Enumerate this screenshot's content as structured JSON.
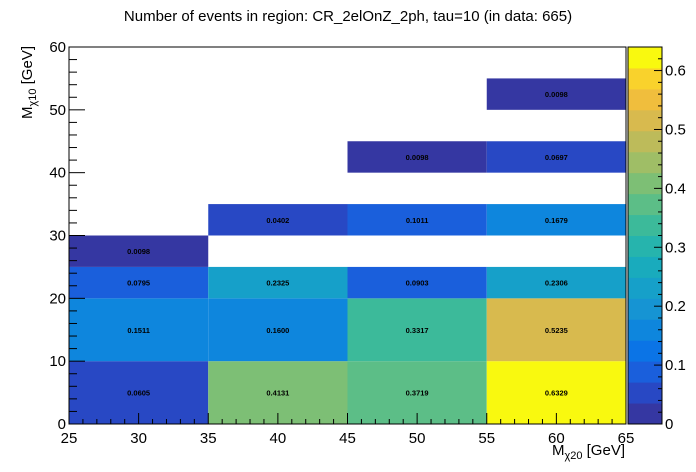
{
  "chart_data": {
    "type": "heatmap",
    "title": "Number of events in region: CR_2elOnZ_2ph, tau=10 (in data: 665)",
    "xlabel": {
      "main": "M",
      "sub": "χ20",
      "unit": " [GeV]"
    },
    "ylabel": {
      "main": "M",
      "sub": "χ10",
      "unit": " [GeV]"
    },
    "xlim": [
      25,
      65
    ],
    "ylim": [
      0,
      60
    ],
    "x_ticks": [
      "25",
      "30",
      "35",
      "40",
      "45",
      "50",
      "55",
      "60",
      "65"
    ],
    "y_ticks": [
      "0",
      "10",
      "20",
      "30",
      "40",
      "50",
      "60"
    ],
    "zlim": [
      0,
      0.64
    ],
    "z_ticks": [
      "0",
      "0.1",
      "0.2",
      "0.3",
      "0.4",
      "0.5",
      "0.6"
    ],
    "cells": [
      {
        "x0": 25,
        "x1": 35,
        "y0": 0,
        "y1": 10,
        "value": 0.0605,
        "label": "0.0605"
      },
      {
        "x0": 35,
        "x1": 45,
        "y0": 0,
        "y1": 10,
        "value": 0.4131,
        "label": "0.4131"
      },
      {
        "x0": 45,
        "x1": 55,
        "y0": 0,
        "y1": 10,
        "value": 0.3719,
        "label": "0.3719"
      },
      {
        "x0": 55,
        "x1": 65,
        "y0": 0,
        "y1": 10,
        "value": 0.6329,
        "label": "0.6329"
      },
      {
        "x0": 25,
        "x1": 35,
        "y0": 10,
        "y1": 20,
        "value": 0.1511,
        "label": "0.1511"
      },
      {
        "x0": 35,
        "x1": 45,
        "y0": 10,
        "y1": 20,
        "value": 0.16,
        "label": "0.1600"
      },
      {
        "x0": 45,
        "x1": 55,
        "y0": 10,
        "y1": 20,
        "value": 0.3317,
        "label": "0.3317"
      },
      {
        "x0": 55,
        "x1": 65,
        "y0": 10,
        "y1": 20,
        "value": 0.5235,
        "label": "0.5235"
      },
      {
        "x0": 25,
        "x1": 35,
        "y0": 20,
        "y1": 25,
        "value": 0.0795,
        "label": "0.0795"
      },
      {
        "x0": 35,
        "x1": 45,
        "y0": 20,
        "y1": 25,
        "value": 0.2325,
        "label": "0.2325"
      },
      {
        "x0": 45,
        "x1": 55,
        "y0": 20,
        "y1": 25,
        "value": 0.0903,
        "label": "0.0903"
      },
      {
        "x0": 55,
        "x1": 65,
        "y0": 20,
        "y1": 25,
        "value": 0.2306,
        "label": "0.2306"
      },
      {
        "x0": 25,
        "x1": 35,
        "y0": 25,
        "y1": 30,
        "value": 0.0098,
        "label": "0.0098"
      },
      {
        "x0": 35,
        "x1": 45,
        "y0": 30,
        "y1": 35,
        "value": 0.0402,
        "label": "0.0402"
      },
      {
        "x0": 45,
        "x1": 55,
        "y0": 30,
        "y1": 35,
        "value": 0.1011,
        "label": "0.1011"
      },
      {
        "x0": 55,
        "x1": 65,
        "y0": 30,
        "y1": 35,
        "value": 0.1679,
        "label": "0.1679"
      },
      {
        "x0": 45,
        "x1": 55,
        "y0": 40,
        "y1": 45,
        "value": 0.0098,
        "label": "0.0098"
      },
      {
        "x0": 55,
        "x1": 65,
        "y0": 40,
        "y1": 45,
        "value": 0.0697,
        "label": "0.0697"
      },
      {
        "x0": 55,
        "x1": 65,
        "y0": 50,
        "y1": 55,
        "value": 0.0098,
        "label": "0.0098"
      }
    ],
    "palette": [
      "#3537a2",
      "#2848c4",
      "#1a5fdc",
      "#0b74e6",
      "#0e86dd",
      "#1694d3",
      "#16a0c9",
      "#19abbd",
      "#26b4ad",
      "#3cba9a",
      "#5cbe87",
      "#7dbf75",
      "#9fbe66",
      "#bdbb5a",
      "#d8ba4e",
      "#f0be3d",
      "#f9d22c",
      "#f9f90f"
    ],
    "grid": false,
    "legend": "colorbar-right"
  }
}
